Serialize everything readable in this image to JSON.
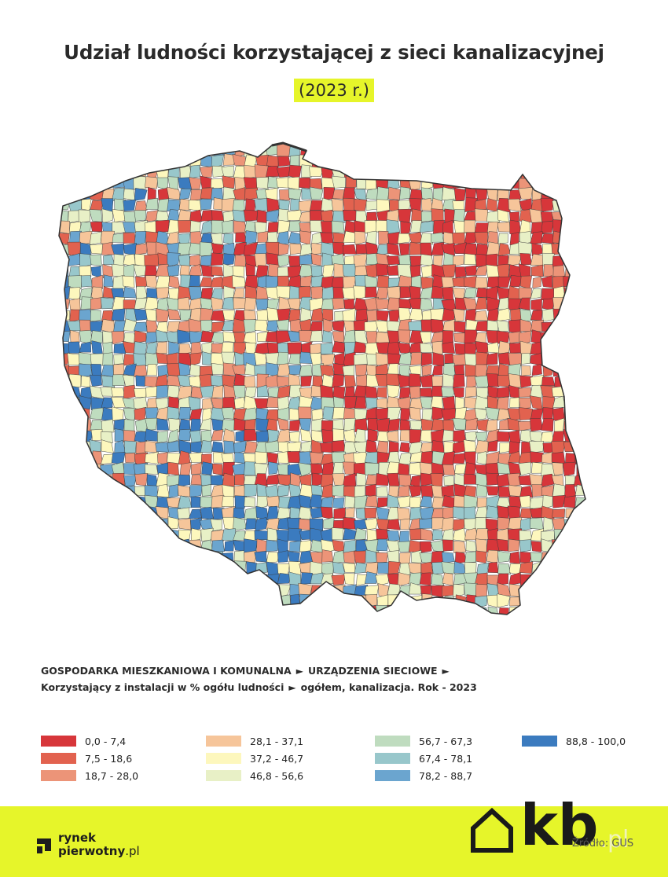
{
  "title": "Udział ludności korzystającej z sieci kanalizacyjnej",
  "subtitle": "(2023 r.)",
  "source": {
    "line1_part1": "GOSPODARKA MIESZKANIOWA I KOMUNALNA",
    "line1_part2": "URZĄDZENIA SIECIOWE",
    "line2_part1": "Korzystający z instalacji w % ogółu ludności",
    "line2_part2": "ogółem, kanalizacja. Rok - 2023",
    "arrow": "►"
  },
  "legend": [
    {
      "label": "0,0 - 7,4",
      "color": "#d7363a"
    },
    {
      "label": "7,5 - 18,6",
      "color": "#e2624f"
    },
    {
      "label": "18,7 - 28,0",
      "color": "#ec9478"
    },
    {
      "label": "28,1 - 37,1",
      "color": "#f6c59a"
    },
    {
      "label": "37,2 - 46,7",
      "color": "#fdf7bd"
    },
    {
      "label": "46,8 - 56,6",
      "color": "#e8f0c6"
    },
    {
      "label": "56,7 - 67,3",
      "color": "#bfdcbf"
    },
    {
      "label": "67,4 - 78,1",
      "color": "#98c7cb"
    },
    {
      "label": "78,2 - 88,7",
      "color": "#6ba5cf"
    },
    {
      "label": "88,8 - 100,0",
      "color": "#3b7bbf"
    }
  ],
  "footer": {
    "brand1_line1": "rynek",
    "brand1_line2": "pierwotny",
    "brand1_tld": ".pl",
    "brand2": "kb",
    "brand2_tld": ".pl",
    "credit": "Źródło: GUS",
    "accent": "#e6f52a"
  }
}
